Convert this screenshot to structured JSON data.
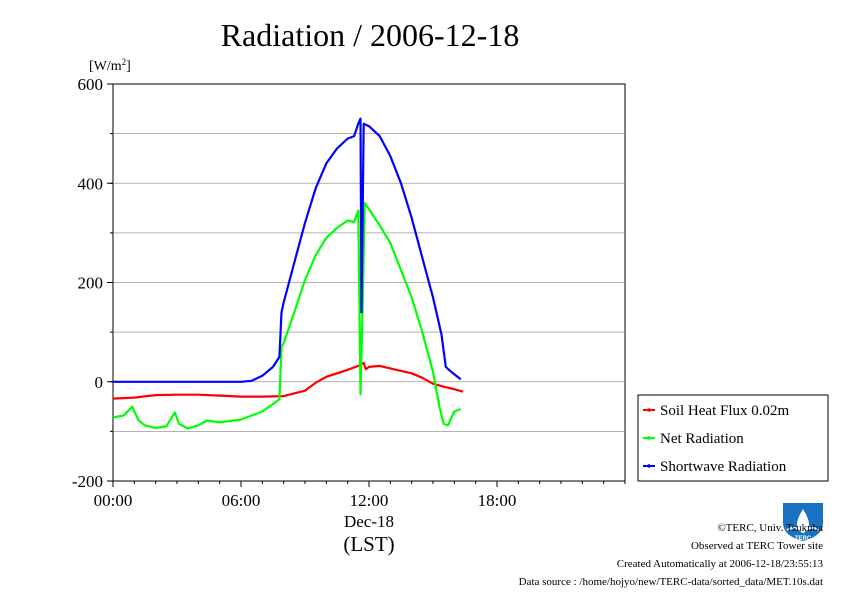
{
  "chart_data": {
    "type": "line",
    "title": "Radiation / 2006-12-18",
    "ylabel": "[W/m",
    "ylabel_sup": "2",
    "ylabel_close": "]",
    "xlabel_date": "Dec-18",
    "xlabel_unit": "(LST)",
    "xlim": [
      0,
      24
    ],
    "ylim": [
      -200,
      600
    ],
    "x_unit": "hours (LST)",
    "grid": true,
    "x_ticks": [
      {
        "value": 0,
        "label": "00:00"
      },
      {
        "value": 6,
        "label": "06:00"
      },
      {
        "value": 12,
        "label": "12:00"
      },
      {
        "value": 18,
        "label": "18:00"
      }
    ],
    "y_ticks": [
      {
        "value": -200,
        "label": "-200"
      },
      {
        "value": 0,
        "label": "0"
      },
      {
        "value": 200,
        "label": "200"
      },
      {
        "value": 400,
        "label": "400"
      },
      {
        "value": 600,
        "label": "600"
      }
    ],
    "legend_position": "right",
    "series": [
      {
        "name": "Soil Heat Flux 0.02m",
        "color": "#ff0000",
        "points": [
          [
            0,
            -34
          ],
          [
            1,
            -32
          ],
          [
            2,
            -27
          ],
          [
            3,
            -26
          ],
          [
            4,
            -26
          ],
          [
            5,
            -28
          ],
          [
            6,
            -30
          ],
          [
            7,
            -30
          ],
          [
            8,
            -29
          ],
          [
            9,
            -18
          ],
          [
            9.5,
            -2
          ],
          [
            10,
            10
          ],
          [
            10.5,
            17
          ],
          [
            11,
            24
          ],
          [
            11.5,
            32
          ],
          [
            11.75,
            38
          ],
          [
            11.85,
            25
          ],
          [
            12,
            30
          ],
          [
            12.5,
            32
          ],
          [
            13,
            27
          ],
          [
            14,
            17
          ],
          [
            14.5,
            8
          ],
          [
            15,
            -4
          ],
          [
            15.5,
            -10
          ],
          [
            16,
            -15
          ],
          [
            16.4,
            -20
          ]
        ]
      },
      {
        "name": "Net Radiation",
        "color": "#00ff00",
        "points": [
          [
            0,
            -72
          ],
          [
            0.5,
            -68
          ],
          [
            0.9,
            -50
          ],
          [
            1.2,
            -78
          ],
          [
            1.5,
            -88
          ],
          [
            2,
            -93
          ],
          [
            2.5,
            -90
          ],
          [
            2.9,
            -62
          ],
          [
            3.1,
            -85
          ],
          [
            3.5,
            -94
          ],
          [
            4,
            -88
          ],
          [
            4.4,
            -78
          ],
          [
            5,
            -82
          ],
          [
            6,
            -76
          ],
          [
            7,
            -60
          ],
          [
            7.5,
            -45
          ],
          [
            7.8,
            -35
          ],
          [
            7.9,
            70
          ],
          [
            8,
            78
          ],
          [
            8.5,
            140
          ],
          [
            9,
            205
          ],
          [
            9.5,
            255
          ],
          [
            10,
            290
          ],
          [
            10.5,
            310
          ],
          [
            11,
            325
          ],
          [
            11.3,
            322
          ],
          [
            11.5,
            345
          ],
          [
            11.6,
            -25
          ],
          [
            11.7,
            150
          ],
          [
            11.8,
            360
          ],
          [
            12,
            348
          ],
          [
            12.5,
            315
          ],
          [
            13,
            280
          ],
          [
            13.5,
            225
          ],
          [
            14,
            170
          ],
          [
            14.5,
            100
          ],
          [
            15,
            20
          ],
          [
            15.3,
            -50
          ],
          [
            15.5,
            -85
          ],
          [
            15.7,
            -88
          ],
          [
            16,
            -60
          ],
          [
            16.3,
            -55
          ]
        ]
      },
      {
        "name": "Shortwave Radiation",
        "color": "#0000ff",
        "points": [
          [
            0,
            0
          ],
          [
            1,
            0
          ],
          [
            2,
            0
          ],
          [
            3,
            0
          ],
          [
            4,
            0
          ],
          [
            5,
            0
          ],
          [
            6,
            0
          ],
          [
            6.5,
            2
          ],
          [
            7,
            12
          ],
          [
            7.5,
            30
          ],
          [
            7.8,
            50
          ],
          [
            7.9,
            140
          ],
          [
            8,
            160
          ],
          [
            8.5,
            240
          ],
          [
            9,
            320
          ],
          [
            9.5,
            390
          ],
          [
            10,
            440
          ],
          [
            10.5,
            470
          ],
          [
            11,
            490
          ],
          [
            11.3,
            495
          ],
          [
            11.5,
            520
          ],
          [
            11.6,
            530
          ],
          [
            11.65,
            140
          ],
          [
            11.75,
            520
          ],
          [
            12,
            515
          ],
          [
            12.5,
            495
          ],
          [
            13,
            455
          ],
          [
            13.5,
            400
          ],
          [
            14,
            330
          ],
          [
            14.5,
            250
          ],
          [
            15,
            170
          ],
          [
            15.4,
            95
          ],
          [
            15.6,
            30
          ],
          [
            15.8,
            22
          ],
          [
            16,
            15
          ],
          [
            16.3,
            5
          ]
        ]
      }
    ]
  },
  "credits": {
    "copyright": "©TERC, Univ. Tsukuba",
    "observed": "Observed at TERC Tower site",
    "created": "Created Automatically at 2006-12-18/23:55:13",
    "source": "Data source : /home/hojyo/new/TERC-data/sorted_data/MET.10s.dat"
  },
  "logo": {
    "text": "TERC",
    "color": "#1a72c2"
  }
}
